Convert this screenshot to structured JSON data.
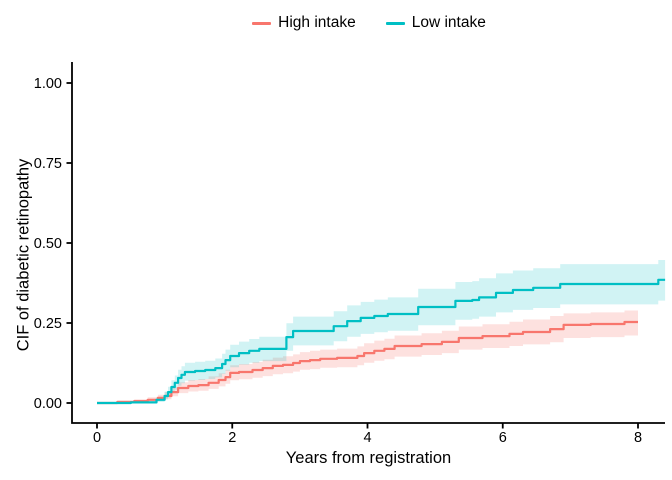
{
  "chart_data": {
    "type": "line",
    "subtype": "step-function-cumulative-incidence-with-confidence-bands",
    "title": "",
    "xlabel": "Years from registration",
    "ylabel": "CIF of diabetic retinopathy",
    "x_ticks": [
      0,
      2,
      4,
      6,
      8
    ],
    "x_tick_labels": [
      "0",
      "2",
      "4",
      "6",
      "8"
    ],
    "y_ticks": [
      0.0,
      0.25,
      0.5,
      0.75,
      1.0
    ],
    "y_tick_labels": [
      "0.00",
      "0.25",
      "0.50",
      "0.75",
      "1.00"
    ],
    "xlim": [
      -0.37,
      8.4
    ],
    "ylim": [
      -0.05,
      1.05
    ],
    "grid": false,
    "legend_position": "top-center",
    "axis_color": "#000000",
    "series": [
      {
        "name": "High intake",
        "color": "#F8766D",
        "band_color": "rgba(248,118,109,0.22)",
        "points_format": [
          "time_years",
          "cif",
          "ci_lower",
          "ci_upper"
        ],
        "points": [
          [
            0.0,
            0.0,
            0.0,
            0.0
          ],
          [
            0.3,
            0.003,
            0.0,
            0.008
          ],
          [
            0.55,
            0.006,
            0.001,
            0.012
          ],
          [
            0.75,
            0.01,
            0.004,
            0.018
          ],
          [
            0.9,
            0.016,
            0.008,
            0.026
          ],
          [
            1.0,
            0.022,
            0.012,
            0.034
          ],
          [
            1.1,
            0.034,
            0.021,
            0.049
          ],
          [
            1.2,
            0.047,
            0.031,
            0.065
          ],
          [
            1.35,
            0.053,
            0.036,
            0.072
          ],
          [
            1.5,
            0.056,
            0.038,
            0.075
          ],
          [
            1.65,
            0.063,
            0.044,
            0.083
          ],
          [
            1.8,
            0.072,
            0.052,
            0.093
          ],
          [
            1.9,
            0.081,
            0.06,
            0.104
          ],
          [
            1.97,
            0.094,
            0.071,
            0.118
          ],
          [
            2.1,
            0.097,
            0.074,
            0.122
          ],
          [
            2.3,
            0.103,
            0.079,
            0.128
          ],
          [
            2.45,
            0.109,
            0.084,
            0.135
          ],
          [
            2.6,
            0.116,
            0.09,
            0.142
          ],
          [
            2.75,
            0.119,
            0.093,
            0.146
          ],
          [
            2.9,
            0.125,
            0.098,
            0.152
          ],
          [
            3.0,
            0.131,
            0.104,
            0.159
          ],
          [
            3.15,
            0.134,
            0.106,
            0.163
          ],
          [
            3.3,
            0.138,
            0.11,
            0.167
          ],
          [
            3.55,
            0.141,
            0.112,
            0.17
          ],
          [
            3.85,
            0.147,
            0.118,
            0.177
          ],
          [
            3.95,
            0.156,
            0.126,
            0.187
          ],
          [
            4.1,
            0.163,
            0.132,
            0.195
          ],
          [
            4.25,
            0.169,
            0.137,
            0.201
          ],
          [
            4.4,
            0.178,
            0.145,
            0.211
          ],
          [
            4.8,
            0.184,
            0.15,
            0.218
          ],
          [
            5.1,
            0.191,
            0.156,
            0.226
          ],
          [
            5.35,
            0.203,
            0.167,
            0.239
          ],
          [
            5.7,
            0.209,
            0.172,
            0.246
          ],
          [
            6.1,
            0.216,
            0.178,
            0.254
          ],
          [
            6.3,
            0.222,
            0.183,
            0.261
          ],
          [
            6.7,
            0.231,
            0.19,
            0.272
          ],
          [
            6.9,
            0.244,
            0.203,
            0.28
          ],
          [
            7.3,
            0.247,
            0.206,
            0.283
          ],
          [
            7.8,
            0.253,
            0.211,
            0.289
          ],
          [
            8.0,
            0.253,
            0.211,
            0.289
          ]
        ]
      },
      {
        "name": "Low intake",
        "color": "#00BFC4",
        "band_color": "rgba(0,191,196,0.18)",
        "points_format": [
          "time_years",
          "cif",
          "ci_lower",
          "ci_upper"
        ],
        "points": [
          [
            0.0,
            0.0,
            0.0,
            0.0
          ],
          [
            0.5,
            0.002,
            0.0,
            0.006
          ],
          [
            0.88,
            0.01,
            0.003,
            0.019
          ],
          [
            1.0,
            0.022,
            0.011,
            0.036
          ],
          [
            1.05,
            0.034,
            0.019,
            0.051
          ],
          [
            1.1,
            0.05,
            0.031,
            0.071
          ],
          [
            1.15,
            0.063,
            0.042,
            0.086
          ],
          [
            1.2,
            0.078,
            0.054,
            0.104
          ],
          [
            1.25,
            0.088,
            0.062,
            0.115
          ],
          [
            1.3,
            0.097,
            0.07,
            0.126
          ],
          [
            1.45,
            0.1,
            0.072,
            0.129
          ],
          [
            1.6,
            0.103,
            0.075,
            0.132
          ],
          [
            1.75,
            0.109,
            0.08,
            0.139
          ],
          [
            1.85,
            0.122,
            0.091,
            0.154
          ],
          [
            1.9,
            0.134,
            0.101,
            0.167
          ],
          [
            1.97,
            0.147,
            0.112,
            0.182
          ],
          [
            2.1,
            0.156,
            0.12,
            0.192
          ],
          [
            2.25,
            0.163,
            0.126,
            0.2
          ],
          [
            2.4,
            0.169,
            0.131,
            0.207
          ],
          [
            2.8,
            0.206,
            0.163,
            0.249
          ],
          [
            2.9,
            0.225,
            0.18,
            0.27
          ],
          [
            3.5,
            0.24,
            0.193,
            0.287
          ],
          [
            3.7,
            0.256,
            0.207,
            0.305
          ],
          [
            3.9,
            0.266,
            0.216,
            0.316
          ],
          [
            4.1,
            0.272,
            0.221,
            0.323
          ],
          [
            4.3,
            0.278,
            0.226,
            0.33
          ],
          [
            4.75,
            0.3,
            0.243,
            0.357
          ],
          [
            5.3,
            0.319,
            0.26,
            0.378
          ],
          [
            5.55,
            0.322,
            0.263,
            0.381
          ],
          [
            5.65,
            0.33,
            0.27,
            0.39
          ],
          [
            5.9,
            0.344,
            0.283,
            0.405
          ],
          [
            6.15,
            0.353,
            0.291,
            0.414
          ],
          [
            6.45,
            0.36,
            0.297,
            0.421
          ],
          [
            6.85,
            0.372,
            0.308,
            0.434
          ],
          [
            8.3,
            0.385,
            0.32,
            0.447
          ],
          [
            8.4,
            0.385,
            0.32,
            0.447
          ]
        ]
      }
    ]
  }
}
